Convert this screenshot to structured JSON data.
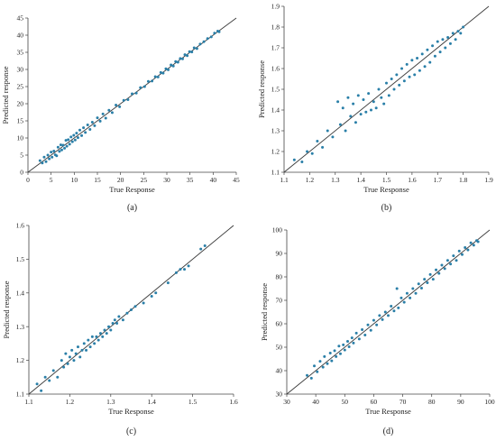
{
  "figure": {
    "background": "#ffffff",
    "point_color": "#2a7fa8",
    "line_color": "#3a3a3a",
    "axis_color": "#444444"
  },
  "chart_data": [
    {
      "id": "a",
      "type": "scatter",
      "caption": "(a)",
      "xlabel": "True Response",
      "ylabel": "Predicted response",
      "xlim": [
        0,
        45
      ],
      "ylim": [
        0,
        45
      ],
      "xticks": [
        0,
        5,
        10,
        15,
        20,
        25,
        30,
        35,
        40,
        45
      ],
      "yticks": [
        0,
        5,
        10,
        15,
        20,
        25,
        30,
        35,
        40,
        45
      ],
      "reference_line": [
        [
          0,
          0
        ],
        [
          45,
          45
        ]
      ],
      "grid": false,
      "legend": "none",
      "series": [
        {
          "points": [
            [
              2.6,
              3.4
            ],
            [
              3.1,
              2.7
            ],
            [
              3.5,
              4.4
            ],
            [
              3.9,
              3.1
            ],
            [
              4.3,
              5.0
            ],
            [
              4.6,
              3.9
            ],
            [
              5.0,
              5.9
            ],
            [
              5.2,
              4.4
            ],
            [
              5.6,
              6.2
            ],
            [
              5.9,
              5.1
            ],
            [
              6.2,
              4.8
            ],
            [
              6.5,
              7.3
            ],
            [
              6.8,
              6.1
            ],
            [
              7.1,
              8.0
            ],
            [
              7.3,
              6.5
            ],
            [
              7.6,
              7.9
            ],
            [
              7.9,
              7.0
            ],
            [
              8.2,
              9.3
            ],
            [
              8.4,
              7.6
            ],
            [
              8.7,
              9.5
            ],
            [
              9.0,
              8.2
            ],
            [
              9.3,
              10.3
            ],
            [
              9.6,
              8.9
            ],
            [
              9.9,
              10.8
            ],
            [
              10.2,
              9.4
            ],
            [
              10.5,
              11.4
            ],
            [
              10.8,
              10.1
            ],
            [
              11.2,
              12.3
            ],
            [
              11.6,
              10.7
            ],
            [
              12.0,
              13.0
            ],
            [
              12.4,
              11.6
            ],
            [
              12.9,
              13.8
            ],
            [
              13.4,
              12.5
            ],
            [
              13.9,
              14.6
            ],
            [
              14.4,
              13.6
            ],
            [
              15.0,
              15.9
            ],
            [
              15.6,
              14.9
            ],
            [
              16.2,
              17.0
            ],
            [
              16.8,
              15.8
            ],
            [
              17.5,
              18.1
            ],
            [
              18.2,
              17.4
            ],
            [
              19.0,
              19.6
            ],
            [
              19.8,
              19.1
            ],
            [
              20.7,
              21.0
            ],
            [
              21.6,
              21.2
            ],
            [
              22.5,
              22.9
            ],
            [
              23.4,
              23.1
            ],
            [
              24.3,
              24.7
            ],
            [
              25.2,
              25.0
            ],
            [
              26.0,
              26.5
            ],
            [
              26.8,
              26.6
            ],
            [
              27.5,
              27.9
            ],
            [
              28.1,
              27.8
            ],
            [
              28.7,
              29.1
            ],
            [
              29.2,
              28.9
            ],
            [
              29.8,
              30.2
            ],
            [
              30.3,
              29.9
            ],
            [
              30.9,
              31.3
            ],
            [
              31.4,
              31.0
            ],
            [
              31.9,
              32.3
            ],
            [
              32.4,
              32.1
            ],
            [
              32.9,
              33.2
            ],
            [
              33.4,
              33.1
            ],
            [
              33.9,
              34.3
            ],
            [
              34.4,
              34.0
            ],
            [
              34.9,
              35.2
            ],
            [
              35.4,
              35.1
            ],
            [
              35.9,
              36.3
            ],
            [
              36.5,
              36.1
            ],
            [
              37.2,
              37.4
            ],
            [
              38.0,
              38.1
            ],
            [
              38.8,
              39.0
            ],
            [
              39.6,
              39.5
            ],
            [
              40.3,
              40.6
            ],
            [
              41.0,
              41.2
            ],
            [
              41.3,
              41.0
            ]
          ]
        }
      ]
    },
    {
      "id": "b",
      "type": "scatter",
      "caption": "(b)",
      "xlabel": "True Response",
      "ylabel": "Predicted response",
      "xlim": [
        1.1,
        1.9
      ],
      "ylim": [
        1.1,
        1.9
      ],
      "xticks": [
        1.1,
        1.2,
        1.3,
        1.4,
        1.5,
        1.6,
        1.7,
        1.8,
        1.9
      ],
      "yticks": [
        1.1,
        1.2,
        1.3,
        1.4,
        1.5,
        1.6,
        1.7,
        1.8,
        1.9
      ],
      "reference_line": [
        [
          1.1,
          1.1
        ],
        [
          1.9,
          1.9
        ]
      ],
      "grid": false,
      "legend": "none",
      "series": [
        {
          "points": [
            [
              1.14,
              1.16
            ],
            [
              1.17,
              1.15
            ],
            [
              1.19,
              1.2
            ],
            [
              1.21,
              1.19
            ],
            [
              1.23,
              1.25
            ],
            [
              1.25,
              1.22
            ],
            [
              1.27,
              1.3
            ],
            [
              1.29,
              1.27
            ],
            [
              1.31,
              1.44
            ],
            [
              1.32,
              1.33
            ],
            [
              1.33,
              1.41
            ],
            [
              1.34,
              1.3
            ],
            [
              1.35,
              1.46
            ],
            [
              1.36,
              1.37
            ],
            [
              1.37,
              1.43
            ],
            [
              1.38,
              1.34
            ],
            [
              1.39,
              1.47
            ],
            [
              1.4,
              1.38
            ],
            [
              1.41,
              1.45
            ],
            [
              1.42,
              1.39
            ],
            [
              1.43,
              1.48
            ],
            [
              1.44,
              1.4
            ],
            [
              1.45,
              1.44
            ],
            [
              1.46,
              1.41
            ],
            [
              1.47,
              1.5
            ],
            [
              1.48,
              1.46
            ],
            [
              1.49,
              1.43
            ],
            [
              1.5,
              1.53
            ],
            [
              1.51,
              1.47
            ],
            [
              1.52,
              1.55
            ],
            [
              1.53,
              1.5
            ],
            [
              1.54,
              1.57
            ],
            [
              1.55,
              1.52
            ],
            [
              1.56,
              1.6
            ],
            [
              1.57,
              1.54
            ],
            [
              1.58,
              1.62
            ],
            [
              1.59,
              1.56
            ],
            [
              1.6,
              1.64
            ],
            [
              1.61,
              1.57
            ],
            [
              1.62,
              1.65
            ],
            [
              1.63,
              1.59
            ],
            [
              1.64,
              1.67
            ],
            [
              1.65,
              1.61
            ],
            [
              1.66,
              1.69
            ],
            [
              1.67,
              1.63
            ],
            [
              1.68,
              1.71
            ],
            [
              1.69,
              1.66
            ],
            [
              1.7,
              1.73
            ],
            [
              1.71,
              1.68
            ],
            [
              1.72,
              1.74
            ],
            [
              1.73,
              1.7
            ],
            [
              1.74,
              1.75
            ],
            [
              1.75,
              1.72
            ],
            [
              1.76,
              1.77
            ],
            [
              1.77,
              1.74
            ],
            [
              1.78,
              1.78
            ],
            [
              1.79,
              1.77
            ],
            [
              1.8,
              1.8
            ]
          ]
        }
      ]
    },
    {
      "id": "c",
      "type": "scatter",
      "caption": "(c)",
      "xlabel": "True Response",
      "ylabel": "Predicted response",
      "xlim": [
        1.1,
        1.6
      ],
      "ylim": [
        1.1,
        1.6
      ],
      "xticks": [
        1.1,
        1.2,
        1.3,
        1.4,
        1.5,
        1.6
      ],
      "yticks": [
        1.1,
        1.2,
        1.3,
        1.4,
        1.5,
        1.6
      ],
      "reference_line": [
        [
          1.1,
          1.1
        ],
        [
          1.6,
          1.6
        ]
      ],
      "grid": false,
      "legend": "none",
      "series": [
        {
          "points": [
            [
              1.12,
              1.13
            ],
            [
              1.13,
              1.11
            ],
            [
              1.14,
              1.15
            ],
            [
              1.15,
              1.14
            ],
            [
              1.16,
              1.17
            ],
            [
              1.17,
              1.15
            ],
            [
              1.18,
              1.2
            ],
            [
              1.185,
              1.18
            ],
            [
              1.19,
              1.22
            ],
            [
              1.195,
              1.19
            ],
            [
              1.2,
              1.21
            ],
            [
              1.205,
              1.23
            ],
            [
              1.21,
              1.2
            ],
            [
              1.215,
              1.22
            ],
            [
              1.22,
              1.24
            ],
            [
              1.225,
              1.21
            ],
            [
              1.23,
              1.23
            ],
            [
              1.235,
              1.25
            ],
            [
              1.24,
              1.23
            ],
            [
              1.245,
              1.26
            ],
            [
              1.25,
              1.24
            ],
            [
              1.255,
              1.27
            ],
            [
              1.26,
              1.25
            ],
            [
              1.265,
              1.27
            ],
            [
              1.27,
              1.26
            ],
            [
              1.275,
              1.28
            ],
            [
              1.28,
              1.27
            ],
            [
              1.285,
              1.29
            ],
            [
              1.29,
              1.28
            ],
            [
              1.295,
              1.3
            ],
            [
              1.3,
              1.29
            ],
            [
              1.305,
              1.31
            ],
            [
              1.31,
              1.32
            ],
            [
              1.315,
              1.31
            ],
            [
              1.32,
              1.33
            ],
            [
              1.33,
              1.32
            ],
            [
              1.34,
              1.34
            ],
            [
              1.35,
              1.35
            ],
            [
              1.36,
              1.36
            ],
            [
              1.38,
              1.37
            ],
            [
              1.4,
              1.39
            ],
            [
              1.41,
              1.4
            ],
            [
              1.44,
              1.43
            ],
            [
              1.46,
              1.46
            ],
            [
              1.47,
              1.47
            ],
            [
              1.48,
              1.47
            ],
            [
              1.49,
              1.48
            ],
            [
              1.52,
              1.53
            ],
            [
              1.53,
              1.54
            ]
          ]
        }
      ]
    },
    {
      "id": "d",
      "type": "scatter",
      "caption": "(d)",
      "xlabel": "True Response",
      "ylabel": "Predicted response",
      "xlim": [
        30,
        100
      ],
      "ylim": [
        30,
        100
      ],
      "xticks": [
        30,
        40,
        50,
        60,
        70,
        80,
        90,
        100
      ],
      "yticks": [
        30,
        40,
        50,
        60,
        70,
        80,
        90,
        100
      ],
      "reference_line": [
        [
          30,
          30
        ],
        [
          100,
          100
        ]
      ],
      "grid": false,
      "legend": "none",
      "series": [
        {
          "points": [
            [
              37,
              38
            ],
            [
              38.5,
              36.8
            ],
            [
              39.5,
              42
            ],
            [
              40.5,
              39.5
            ],
            [
              41.5,
              44
            ],
            [
              42.5,
              41.5
            ],
            [
              43,
              46
            ],
            [
              44,
              43
            ],
            [
              45,
              47.5
            ],
            [
              45.5,
              44.2
            ],
            [
              46.5,
              48.5
            ],
            [
              47,
              46
            ],
            [
              48,
              50.5
            ],
            [
              48.5,
              47.2
            ],
            [
              49.5,
              51
            ],
            [
              50,
              48.8
            ],
            [
              51,
              52.5
            ],
            [
              51.5,
              50.2
            ],
            [
              52.5,
              54
            ],
            [
              53,
              51.8
            ],
            [
              54,
              56
            ],
            [
              55,
              53.5
            ],
            [
              56,
              57.5
            ],
            [
              57,
              55.2
            ],
            [
              58,
              59.5
            ],
            [
              59,
              57.2
            ],
            [
              60,
              61.5
            ],
            [
              61,
              59.5
            ],
            [
              62,
              63.5
            ],
            [
              63,
              61.8
            ],
            [
              64,
              65
            ],
            [
              65,
              63.5
            ],
            [
              66,
              67.5
            ],
            [
              67,
              65.5
            ],
            [
              68,
              75
            ],
            [
              68.5,
              66.8
            ],
            [
              69.5,
              71
            ],
            [
              70.5,
              69.2
            ],
            [
              71.5,
              73
            ],
            [
              72.5,
              71
            ],
            [
              73.5,
              75
            ],
            [
              74.5,
              73
            ],
            [
              75.5,
              77
            ],
            [
              76.5,
              75.2
            ],
            [
              77.5,
              79
            ],
            [
              78.5,
              77.5
            ],
            [
              79.5,
              81
            ],
            [
              80.5,
              79
            ],
            [
              81.5,
              83
            ],
            [
              82.5,
              81.5
            ],
            [
              83.5,
              85
            ],
            [
              84.5,
              83.5
            ],
            [
              85.5,
              87
            ],
            [
              86.5,
              85.5
            ],
            [
              87.5,
              89
            ],
            [
              88.5,
              87
            ],
            [
              89.5,
              91
            ],
            [
              90.5,
              89.5
            ],
            [
              91.5,
              92.5
            ],
            [
              92.5,
              91.5
            ],
            [
              93.5,
              94.5
            ],
            [
              94.5,
              93.5
            ],
            [
              95.5,
              95.5
            ],
            [
              96,
              95
            ]
          ]
        }
      ]
    }
  ]
}
